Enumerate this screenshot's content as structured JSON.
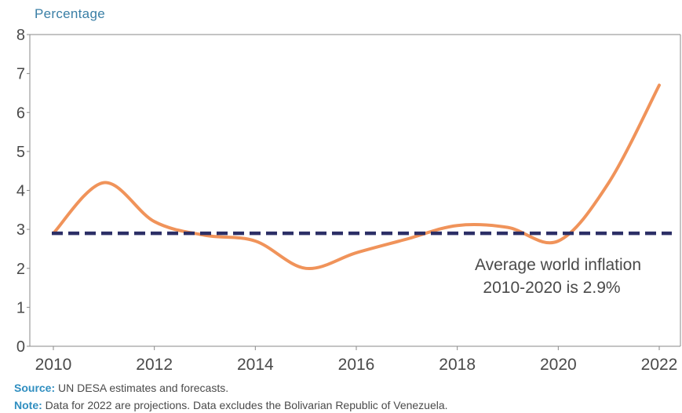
{
  "chart_data": {
    "type": "line",
    "ylabel": "Percentage",
    "xlabel": "",
    "ylim": [
      0,
      8
    ],
    "xlim": [
      2010,
      2022
    ],
    "y_ticks": [
      0,
      1,
      2,
      3,
      4,
      5,
      6,
      7,
      8
    ],
    "x_ticks": [
      2010,
      2012,
      2014,
      2016,
      2018,
      2020,
      2022
    ],
    "grid": false,
    "series": [
      {
        "x": [
          2010,
          2011,
          2012,
          2013,
          2014,
          2015,
          2016,
          2017,
          2018,
          2019,
          2020,
          2021,
          2022
        ],
        "values": [
          2.9,
          4.2,
          3.2,
          2.85,
          2.7,
          2.0,
          2.4,
          2.75,
          3.1,
          3.05,
          2.7,
          4.2,
          6.7
        ],
        "color": "#f0935a"
      }
    ],
    "reference_line": {
      "value": 2.9,
      "color": "#2c2f66",
      "style": "dashed"
    },
    "annotation": [
      "Average world inflation",
      "2010-2020 is 2.9%"
    ]
  },
  "footer": {
    "source_label": "Source:",
    "source_text": " UN DESA estimates and forecasts.",
    "note_label": "Note:",
    "note_text": " Data for 2022 are projections. Data excludes the Bolivarian Republic of Venezuela."
  }
}
